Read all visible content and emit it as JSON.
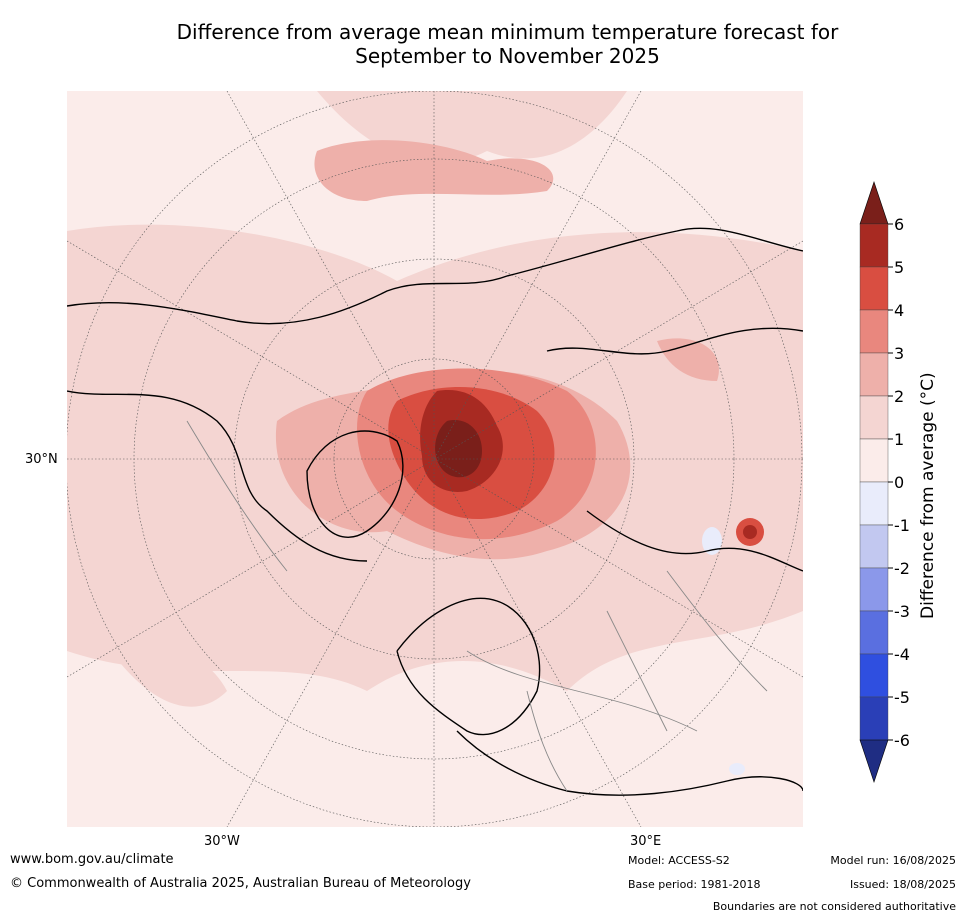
{
  "title_line1": "Difference from average mean minimum temperature forecast for",
  "title_line2": "September to November 2025",
  "map_labels": {
    "lat30": "30°N",
    "lon30w": "30°W",
    "lon30e": "30°E"
  },
  "colorbar": {
    "label": "Difference from average (°C)",
    "ticks": [
      "6",
      "5",
      "4",
      "3",
      "2",
      "1",
      "0",
      "-1",
      "-2",
      "-3",
      "-4",
      "-5",
      "-6"
    ],
    "colors": [
      "#a82a22",
      "#d94e41",
      "#e9877e",
      "#eeb0aa",
      "#f4d5d2",
      "#fbecea",
      "#e9ecfb",
      "#c2c8f0",
      "#8b98ea",
      "#5a6fe0",
      "#2f4fe0",
      "#2a3fb7"
    ],
    "top_arrow_color": "#7a1f1a",
    "bottom_arrow_color": "#1f2d83"
  },
  "footer": {
    "website": "www.bom.gov.au/climate",
    "copyright": "© Commonwealth of Australia 2025, Australian Bureau of Meteorology",
    "model": "Model: ACCESS-S2",
    "base_period": "Base period: 1981-2018",
    "model_run": "Model run: 16/08/2025",
    "issued": "Issued: 18/08/2025",
    "disclaimer": "Boundaries are not considered authoritative"
  }
}
